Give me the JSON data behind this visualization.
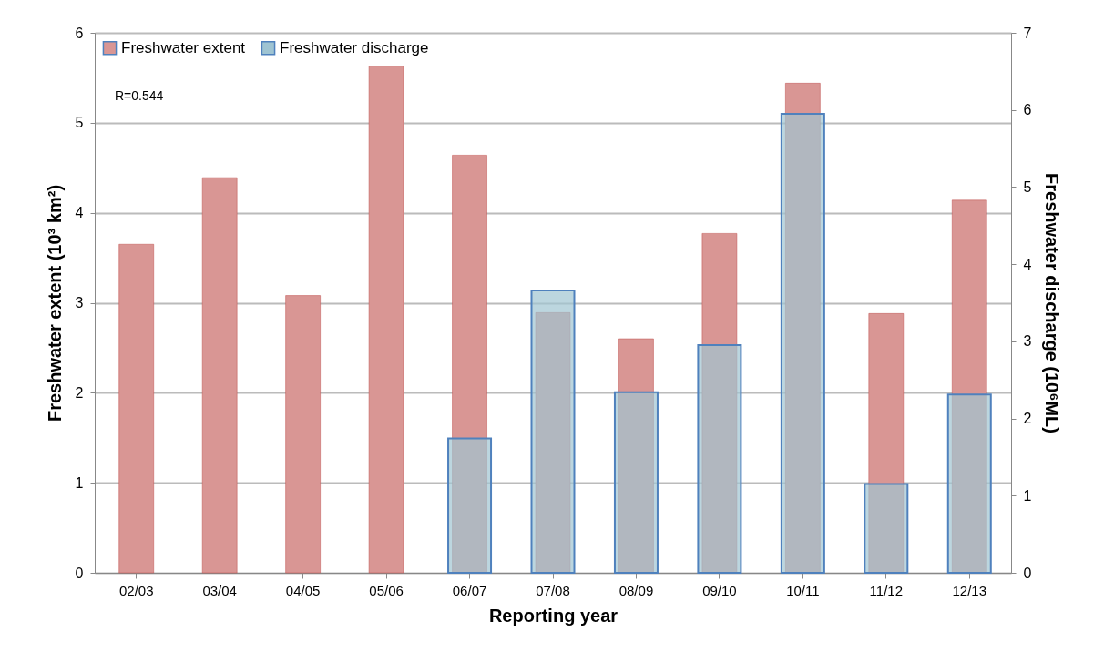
{
  "chart_data": {
    "type": "bar",
    "xlabel": "Reporting year",
    "ylabel": "Freshwater extent (10³ km²)",
    "y2label": "Freshwater discharge (10⁶ML)",
    "categories": [
      "02/03",
      "03/04",
      "04/05",
      "05/06",
      "06/07",
      "07/08",
      "08/09",
      "09/10",
      "10/11",
      "11/12",
      "12/13"
    ],
    "series": [
      {
        "name": "Freshwater extent",
        "color": "#d99694",
        "values": [
          3.65,
          4.39,
          3.08,
          5.63,
          4.64,
          2.89,
          2.6,
          3.77,
          5.44,
          2.88,
          4.14
        ]
      },
      {
        "name": "Freshwater discharge",
        "color": "#9fc4d2",
        "axis": "y2",
        "values": [
          null,
          null,
          null,
          null,
          1.74,
          3.66,
          2.34,
          2.95,
          5.95,
          1.15,
          2.31
        ]
      }
    ],
    "ylim": [
      0,
      6
    ],
    "yticks": [
      0,
      1,
      2,
      3,
      4,
      5,
      6
    ],
    "y2lim": [
      0,
      7
    ],
    "y2ticks": [
      0,
      1,
      2,
      3,
      4,
      5,
      6,
      7
    ],
    "grid": "y",
    "legend": "top left",
    "annotations": [
      "R=0.544"
    ]
  }
}
